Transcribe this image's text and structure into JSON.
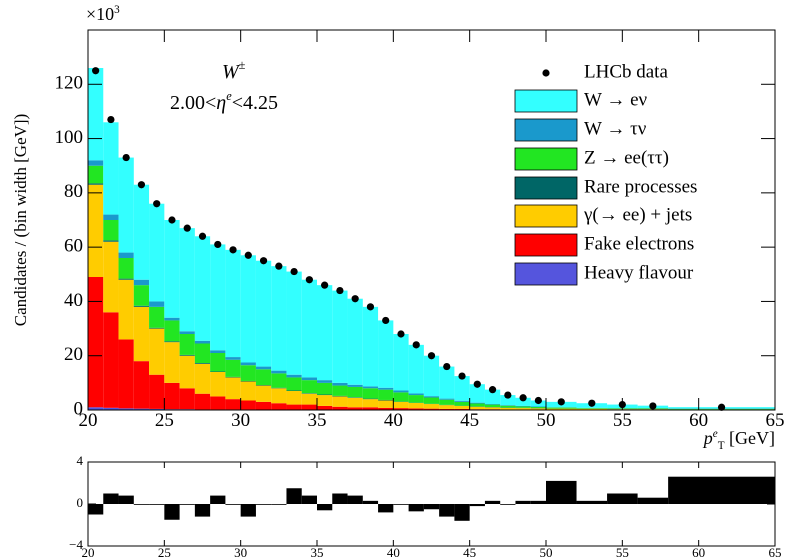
{
  "chart_data": [
    {
      "type": "stacked-histogram",
      "y_axis_label": "Candidates / (bin width [GeV])",
      "x_axis_label": {
        "parts": [
          {
            "text": "p",
            "italic": true
          },
          {
            "text": "e",
            "sup": true,
            "italic": true
          },
          {
            "text": "T",
            "sub": true
          },
          {
            "text": " [GeV]"
          }
        ]
      },
      "y_multiplier": {
        "parts": [
          {
            "text": "×10"
          },
          {
            "text": "3",
            "sup": true
          }
        ]
      },
      "annotations": [
        {
          "parts": [
            {
              "text": "W",
              "italic": true
            },
            {
              "text": "±",
              "sup": true
            }
          ]
        },
        {
          "parts": [
            {
              "text": "2.00<"
            },
            {
              "text": "η",
              "italic": true
            },
            {
              "text": "e",
              "sup": true,
              "italic": true
            },
            {
              "text": "<4.25"
            }
          ]
        }
      ],
      "bins": [
        20,
        21,
        22,
        23,
        24,
        25,
        26,
        27,
        28,
        29,
        30,
        31,
        32,
        33,
        34,
        35,
        36,
        37,
        38,
        39,
        40,
        41,
        42,
        43,
        44,
        45,
        46,
        47,
        48,
        49,
        50,
        52,
        54,
        56,
        58,
        65
      ],
      "xlim": [
        20,
        65
      ],
      "xticks": [
        20,
        25,
        30,
        35,
        40,
        45,
        50,
        55,
        60,
        65
      ],
      "ylim": [
        0,
        140
      ],
      "yticks": [
        0,
        20,
        40,
        60,
        80,
        100,
        120
      ],
      "stacked": true,
      "series": [
        {
          "name": "W → eν",
          "color": "#33ffff",
          "values": [
            34,
            34,
            35,
            35,
            36,
            36,
            38,
            38.5,
            39,
            39.5,
            39.5,
            39,
            38.5,
            38,
            36,
            35,
            34,
            31.7,
            29.3,
            24.8,
            20.8,
            17.9,
            14.9,
            11.8,
            9.1,
            6.8,
            5.3,
            3.7,
            3,
            2.2,
            2,
            1.7,
            1.3,
            0.9,
            0.5
          ]
        },
        {
          "name": "W → τν",
          "color": "#1a99cc",
          "values": [
            2,
            2,
            2,
            2,
            2,
            1,
            1,
            1,
            1,
            1,
            1,
            1,
            1,
            1,
            1,
            1,
            1,
            0.8,
            0.7,
            0.7,
            0.7,
            0.6,
            0.5,
            0.4,
            0.4,
            0.3,
            0.2,
            0.2,
            0.2,
            0.2,
            0.1,
            0.1,
            0.1,
            0.1,
            0.1
          ]
        },
        {
          "name": "Z → ee(ττ)",
          "color": "#22e622",
          "values": [
            6.5,
            7.5,
            7.6,
            7.6,
            7.7,
            7.7,
            7.7,
            7.2,
            6.8,
            6.3,
            5.8,
            5.8,
            5.3,
            4.8,
            4.8,
            4.3,
            3.8,
            3.8,
            3.8,
            3.8,
            3.4,
            2.8,
            2.3,
            1.9,
            1.4,
            1.1,
            0.9,
            0.7,
            0.5,
            0.4,
            0.35,
            0.25,
            0.25,
            0.25,
            0.2
          ]
        },
        {
          "name": "Rare processes",
          "color": "#006666",
          "values": [
            0.5,
            0.5,
            0.4,
            0.4,
            0.3,
            0.3,
            0.3,
            0.3,
            0.2,
            0.2,
            0.2,
            0.2,
            0.2,
            0.2,
            0.2,
            0.2,
            0.2,
            0.2,
            0.2,
            0.2,
            0.1,
            0.1,
            0.1,
            0.1,
            0.1,
            0.1,
            0.1,
            0.1,
            0.1,
            0.1,
            0.05,
            0.05,
            0.05,
            0.05,
            0.05
          ]
        },
        {
          "name": "γ(→ ee) + jets",
          "color": "#ffcc00",
          "values": [
            34,
            26,
            22,
            20,
            17,
            15,
            12,
            11,
            9,
            8,
            7,
            6,
            5.5,
            5,
            4,
            4,
            3.8,
            3.5,
            3,
            2.7,
            2.3,
            2,
            1.7,
            1.4,
            1.1,
            0.9,
            0.7,
            0.6,
            0.5,
            0.4,
            0.35,
            0.3,
            0.2,
            0.2,
            0.15
          ]
        },
        {
          "name": "Fake electrons",
          "color": "#ff0000",
          "values": [
            48,
            35.2,
            25.4,
            17.5,
            12.6,
            9.7,
            7.7,
            5.8,
            4.8,
            3.8,
            3.3,
            2.9,
            2.4,
            1.9,
            1.9,
            1.4,
            1.1,
            0.9,
            0.9,
            0.7,
            0.6,
            0.5,
            0.4,
            0.3,
            0.3,
            0.2,
            0.2,
            0.15,
            0.15,
            0.15,
            0.1,
            0.05,
            0.05,
            0.05,
            0.03
          ]
        },
        {
          "name": "Heavy flavour",
          "color": "#5555dd",
          "values": [
            1,
            0.8,
            0.6,
            0.5,
            0.4,
            0.3,
            0.3,
            0.2,
            0.2,
            0.2,
            0.2,
            0.1,
            0.1,
            0.1,
            0.1,
            0.1,
            0.1,
            0.1,
            0.1,
            0.1,
            0.1,
            0.1,
            0.1,
            0.1,
            0.1,
            0.1,
            0.1,
            0.05,
            0.05,
            0.05,
            0.05,
            0.05,
            0.05,
            0.05,
            0.02
          ]
        }
      ],
      "points": {
        "name": "LHCb data",
        "color": "#000000",
        "values": [
          125,
          107,
          93,
          83,
          76,
          70,
          67,
          64,
          61,
          59,
          57,
          55,
          53,
          51,
          48,
          46,
          44,
          41,
          38,
          33,
          28,
          24,
          20,
          16,
          12.5,
          9.5,
          7.5,
          5.5,
          4.5,
          3.5,
          3,
          2.5,
          2,
          1.5,
          1
        ]
      }
    },
    {
      "type": "histogram",
      "bins": [
        20,
        21,
        22,
        23,
        24,
        25,
        26,
        27,
        28,
        29,
        30,
        31,
        32,
        33,
        34,
        35,
        36,
        37,
        38,
        39,
        40,
        41,
        42,
        43,
        44,
        45,
        46,
        47,
        48,
        49,
        50,
        52,
        54,
        56,
        58,
        65
      ],
      "values": [
        -1,
        1,
        0.8,
        0,
        0,
        -1.5,
        0,
        -1.2,
        0.8,
        0,
        -1.2,
        0,
        0,
        1.5,
        0.8,
        -0.6,
        1,
        0.8,
        0.3,
        -0.8,
        0,
        -0.7,
        -0.5,
        -1.2,
        -1.6,
        -0.2,
        0.3,
        0,
        0.3,
        0.3,
        2.2,
        0.3,
        1,
        0.6,
        2.6
      ],
      "color": "#000000",
      "xlim": [
        20,
        65
      ],
      "xticks": [
        20,
        25,
        30,
        35,
        40,
        45,
        50,
        55,
        60,
        65
      ],
      "ylim": [
        -4,
        4
      ],
      "yticks": [
        {
          "value": -4,
          "label": "−4"
        },
        0,
        4
      ]
    }
  ]
}
